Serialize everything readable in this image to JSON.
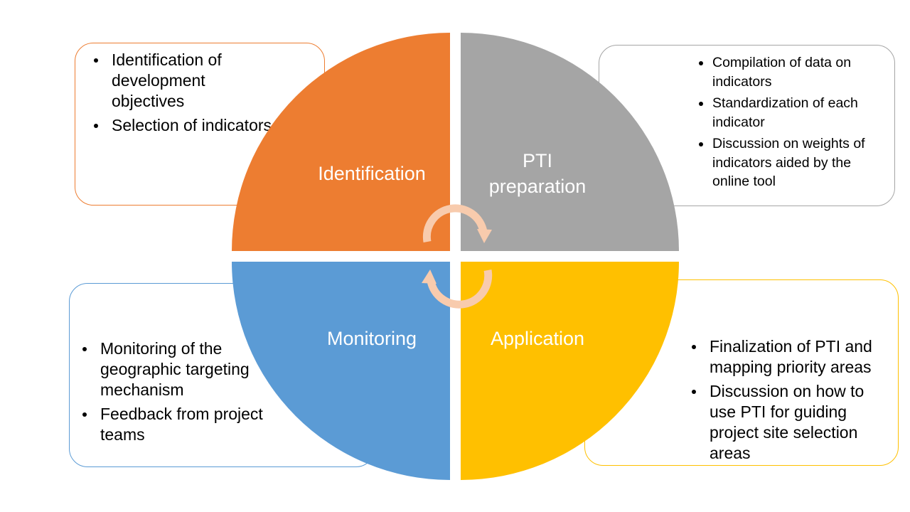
{
  "quadrants": {
    "identification": {
      "label": "Identification",
      "color": "#ED7D31"
    },
    "pti_preparation": {
      "label_line1": "PTI",
      "label_line2": "preparation",
      "color": "#A5A5A5"
    },
    "monitoring": {
      "label": "Monitoring",
      "color": "#5B9BD5"
    },
    "application": {
      "label": "Application",
      "color": "#FFC000"
    }
  },
  "boxes": {
    "identification": {
      "items": [
        "Identification of development objectives",
        "Selection of indicators"
      ]
    },
    "pti_preparation": {
      "items": [
        "Compilation of data on indicators",
        "Standardization of each indicator",
        "Discussion on weights of indicators aided by the online tool"
      ]
    },
    "monitoring": {
      "items": [
        "Monitoring of the geographic targeting mechanism",
        "Feedback from project teams"
      ]
    },
    "application": {
      "items": [
        "Finalization of PTI and mapping priority areas",
        "Discussion on how to use PTI for guiding project site selection areas"
      ]
    }
  },
  "cycle_arrow_color": "#F8CBAD"
}
